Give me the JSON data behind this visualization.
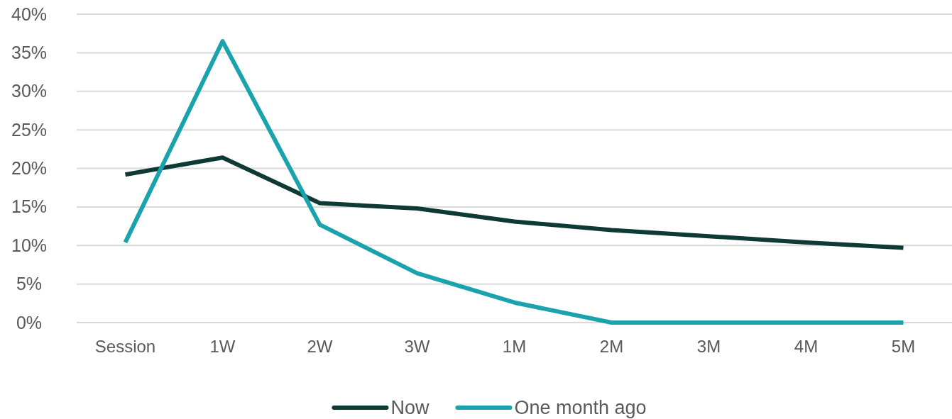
{
  "chart_data": {
    "type": "line",
    "categories": [
      "Session",
      "1W",
      "2W",
      "3W",
      "1M",
      "2M",
      "3M",
      "4M",
      "5M"
    ],
    "series": [
      {
        "name": "Now",
        "color": "#0e3a35",
        "values": [
          19.2,
          21.4,
          15.5,
          14.8,
          13.1,
          12.0,
          11.2,
          10.4,
          9.7
        ]
      },
      {
        "name": "One month ago",
        "color": "#1aa3ad",
        "values": [
          10.4,
          36.5,
          12.7,
          6.4,
          2.6,
          0,
          0,
          0,
          0
        ]
      }
    ],
    "ylim": [
      0,
      40
    ],
    "yticks": [
      {
        "value": 0,
        "label": "0%"
      },
      {
        "value": 5,
        "label": "5%"
      },
      {
        "value": 10,
        "label": "10%"
      },
      {
        "value": 15,
        "label": "15%"
      },
      {
        "value": 20,
        "label": "20%"
      },
      {
        "value": 25,
        "label": "25%"
      },
      {
        "value": 30,
        "label": "30%"
      },
      {
        "value": 35,
        "label": "35%"
      },
      {
        "value": 40,
        "label": "40%"
      }
    ],
    "grid": "y",
    "legend": "bottom",
    "marker": "none",
    "line_style": "solid"
  }
}
